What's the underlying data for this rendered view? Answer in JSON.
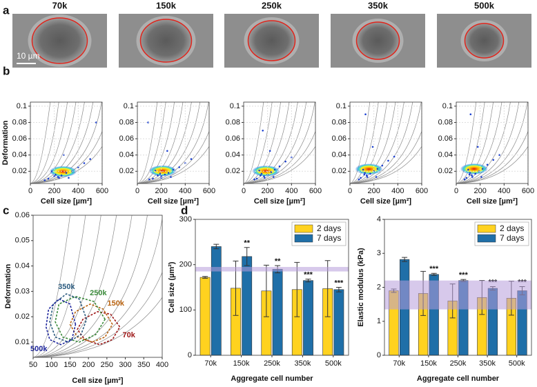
{
  "panel_labels": [
    "a",
    "b",
    "c",
    "d"
  ],
  "images": {
    "labels": [
      "70k",
      "150k",
      "250k",
      "350k",
      "500k"
    ],
    "scale_bar": "10 µm"
  },
  "chart_data": [
    {
      "type": "scatter",
      "xlabel": "Cell size [µm²]",
      "ylabel": "Deformation",
      "color": "#1a3fd1",
      "grid": true,
      "xlim": [
        0,
        600
      ],
      "xticks": [
        0,
        200,
        400,
        600
      ],
      "ylim": [
        0.005,
        0.105
      ],
      "yticks": [
        0.02,
        0.04,
        0.06,
        0.08,
        0.1
      ],
      "x": [
        150,
        200,
        230,
        260,
        300,
        350,
        400,
        450,
        180,
        120,
        500,
        550,
        280,
        320,
        240,
        210
      ],
      "y": [
        0.011,
        0.014,
        0.013,
        0.015,
        0.018,
        0.02,
        0.025,
        0.03,
        0.02,
        0.009,
        0.035,
        0.08,
        0.04,
        0.012,
        0.012,
        0.016
      ]
    },
    {
      "type": "scatter",
      "xlabel": "Cell size [µm²]",
      "color": "#1a3fd1",
      "grid": true,
      "xlim": [
        0,
        600
      ],
      "xticks": [
        0,
        200,
        400,
        600
      ],
      "ylim": [
        0.005,
        0.105
      ],
      "yticks": [
        0.02,
        0.04,
        0.06,
        0.08,
        0.1
      ],
      "x": [
        130,
        170,
        200,
        230,
        260,
        300,
        350,
        400,
        150,
        100,
        450,
        90,
        250,
        280,
        200,
        190
      ],
      "y": [
        0.011,
        0.015,
        0.014,
        0.016,
        0.018,
        0.022,
        0.025,
        0.03,
        0.021,
        0.01,
        0.035,
        0.08,
        0.045,
        0.013,
        0.012,
        0.017
      ]
    },
    {
      "type": "scatter",
      "xlabel": "Cell size [µm²]",
      "color": "#1a3fd1",
      "grid": true,
      "xlim": [
        0,
        600
      ],
      "xticks": [
        0,
        200,
        400,
        600
      ],
      "ylim": [
        0.005,
        0.105
      ],
      "yticks": [
        0.02,
        0.04,
        0.06,
        0.08,
        0.1
      ],
      "x": [
        110,
        140,
        170,
        200,
        230,
        260,
        300,
        350,
        130,
        90,
        400,
        160,
        220,
        250,
        175,
        150
      ],
      "y": [
        0.011,
        0.015,
        0.014,
        0.016,
        0.019,
        0.022,
        0.026,
        0.032,
        0.021,
        0.01,
        0.037,
        0.07,
        0.045,
        0.013,
        0.012,
        0.017
      ]
    },
    {
      "type": "scatter",
      "xlabel": "Cell size [µm²]",
      "color": "#1a3fd1",
      "grid": true,
      "xlim": [
        0,
        600
      ],
      "xticks": [
        0,
        200,
        400,
        600
      ],
      "ylim": [
        0.005,
        0.105
      ],
      "yticks": [
        0.02,
        0.04,
        0.06,
        0.08,
        0.1
      ],
      "x": [
        90,
        120,
        140,
        170,
        200,
        230,
        270,
        320,
        110,
        75,
        370,
        130,
        190,
        220,
        145,
        125
      ],
      "y": [
        0.012,
        0.016,
        0.015,
        0.017,
        0.02,
        0.023,
        0.027,
        0.033,
        0.022,
        0.01,
        0.038,
        0.09,
        0.05,
        0.013,
        0.013,
        0.018
      ]
    },
    {
      "type": "scatter",
      "xlabel": "Cell size [µm²]",
      "color": "#1a3fd1",
      "grid": true,
      "xlim": [
        0,
        600
      ],
      "xticks": [
        0,
        200,
        400,
        600
      ],
      "ylim": [
        0.005,
        0.105
      ],
      "yticks": [
        0.02,
        0.04,
        0.06,
        0.08,
        0.1
      ],
      "x": [
        85,
        110,
        130,
        160,
        190,
        220,
        260,
        310,
        100,
        70,
        360,
        120,
        180,
        210,
        135,
        115
      ],
      "y": [
        0.012,
        0.016,
        0.015,
        0.017,
        0.02,
        0.023,
        0.028,
        0.034,
        0.022,
        0.01,
        0.04,
        0.09,
        0.05,
        0.013,
        0.013,
        0.018
      ]
    },
    {
      "type": "contour",
      "xlabel": "Cell size [µm²]",
      "ylabel": "Deformation",
      "xlim": [
        50,
        400
      ],
      "xticks": [
        50,
        100,
        150,
        200,
        250,
        300,
        350,
        400
      ],
      "ylim": [
        0.004,
        0.06
      ],
      "yticks": [
        0.01,
        0.02,
        0.03,
        0.04,
        0.05,
        0.06
      ],
      "series": [
        {
          "name": "70k",
          "color": "#9c1414",
          "x": [
            285,
            260,
            225,
            185,
            170,
            190,
            230,
            265
          ],
          "y": [
            0.016,
            0.021,
            0.022,
            0.019,
            0.015,
            0.011,
            0.009,
            0.011
          ]
        },
        {
          "name": "150k",
          "color": "#b8620f",
          "x": [
            265,
            240,
            205,
            165,
            150,
            170,
            210,
            245
          ],
          "y": [
            0.017,
            0.023,
            0.025,
            0.022,
            0.017,
            0.012,
            0.01,
            0.012
          ]
        },
        {
          "name": "250k",
          "color": "#3a8a3a",
          "x": [
            245,
            215,
            165,
            120,
            110,
            130,
            175,
            220
          ],
          "y": [
            0.019,
            0.026,
            0.028,
            0.025,
            0.018,
            0.012,
            0.01,
            0.013
          ]
        },
        {
          "name": "350k",
          "color": "#2b5b7f",
          "x": [
            195,
            175,
            140,
            105,
            95,
            110,
            145,
            180
          ],
          "y": [
            0.019,
            0.027,
            0.029,
            0.025,
            0.018,
            0.012,
            0.01,
            0.013
          ]
        },
        {
          "name": "500k",
          "color": "#1c249c",
          "x": [
            165,
            150,
            120,
            92,
            85,
            95,
            125,
            155
          ],
          "y": [
            0.017,
            0.025,
            0.027,
            0.023,
            0.016,
            0.011,
            0.009,
            0.011
          ]
        }
      ]
    },
    {
      "type": "bar",
      "xlabel": "Aggregate cell number",
      "ylabel": "Cell size (µm²)",
      "categories": [
        "70k",
        "150k",
        "250k",
        "350k",
        "500k"
      ],
      "ylim": [
        0,
        300
      ],
      "yticks": [
        0,
        100,
        200,
        300
      ],
      "reference_band": [
        185,
        195
      ],
      "band_color": "#b79ddb",
      "legend": "upper right",
      "series": [
        {
          "name": "2 days",
          "color": "#ffd21f",
          "values": [
            172,
            148,
            142,
            145,
            147
          ],
          "errors": [
            2,
            60,
            57,
            60,
            62
          ]
        },
        {
          "name": "7 days",
          "color": "#1f6fa8",
          "values": [
            240,
            218,
            190,
            165,
            145
          ],
          "errors": [
            5,
            20,
            8,
            3,
            5
          ],
          "significance": [
            null,
            "**",
            "**",
            "***",
            "***"
          ]
        }
      ]
    },
    {
      "type": "bar",
      "xlabel": "Aggregate cell number",
      "ylabel": "Elastic modulus (kPa)",
      "categories": [
        "70k",
        "150k",
        "250k",
        "350k",
        "500k"
      ],
      "ylim": [
        0,
        4
      ],
      "yticks": [
        0,
        1,
        2,
        3,
        4
      ],
      "reference_band": [
        1.35,
        2.2
      ],
      "band_color": "#b79ddb",
      "legend": "upper right",
      "series": [
        {
          "name": "2 days",
          "color": "#ffd21f",
          "values": [
            1.9,
            1.82,
            1.6,
            1.7,
            1.68
          ],
          "errors": [
            0.05,
            0.65,
            0.5,
            0.5,
            0.5
          ]
        },
        {
          "name": "7 days",
          "color": "#1f6fa8",
          "values": [
            2.82,
            2.38,
            2.2,
            1.97,
            1.9
          ],
          "errors": [
            0.06,
            0.03,
            0.03,
            0.05,
            0.12
          ],
          "significance": [
            null,
            "***",
            "***",
            "***",
            "***"
          ]
        }
      ]
    }
  ]
}
